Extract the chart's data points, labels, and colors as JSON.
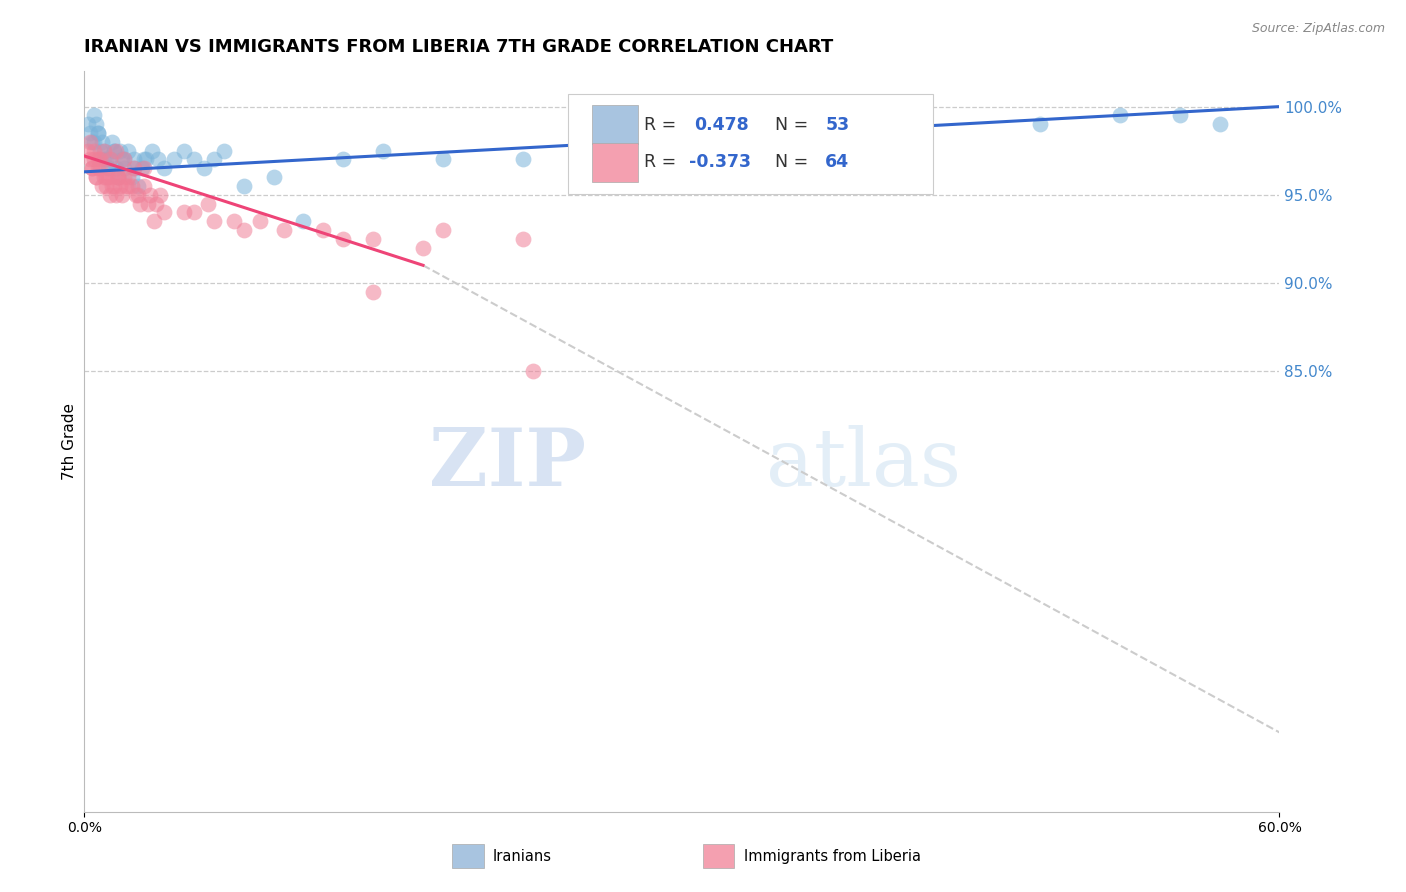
{
  "title": "IRANIAN VS IMMIGRANTS FROM LIBERIA 7TH GRADE CORRELATION CHART",
  "source_text": "Source: ZipAtlas.com",
  "ylabel": "7th Grade",
  "right_yticks": [
    100.0,
    95.0,
    90.0,
    85.0
  ],
  "right_ytick_labels": [
    "100.0%",
    "95.0%",
    "90.0%",
    "85.0%"
  ],
  "xmin": 0.0,
  "xmax": 60.0,
  "ymin": 60.0,
  "ymax": 102.0,
  "watermark_zip": "ZIP",
  "watermark_atlas": "atlas",
  "blue_scatter": {
    "x": [
      0.2,
      0.3,
      0.4,
      0.5,
      0.6,
      0.7,
      0.8,
      0.9,
      1.0,
      1.1,
      1.2,
      1.3,
      1.4,
      1.5,
      1.6,
      1.7,
      1.8,
      1.9,
      2.0,
      2.2,
      2.4,
      2.5,
      2.7,
      2.9,
      3.1,
      3.4,
      3.7,
      4.0,
      4.5,
      5.0,
      5.5,
      6.0,
      6.5,
      7.0,
      8.0,
      9.5,
      11.0,
      13.0,
      15.0,
      18.0,
      22.0,
      0.5,
      0.7,
      1.0,
      1.2,
      1.5,
      2.0,
      2.5,
      3.0,
      48.0,
      52.0,
      55.0,
      57.0
    ],
    "y": [
      99.0,
      98.5,
      98.0,
      99.5,
      99.0,
      98.5,
      97.5,
      98.0,
      97.5,
      97.0,
      96.5,
      97.0,
      98.0,
      97.5,
      96.5,
      96.0,
      97.5,
      97.0,
      96.5,
      97.5,
      96.0,
      97.0,
      95.5,
      96.5,
      97.0,
      97.5,
      97.0,
      96.5,
      97.0,
      97.5,
      97.0,
      96.5,
      97.0,
      97.5,
      95.5,
      96.0,
      93.5,
      97.0,
      97.5,
      97.0,
      97.0,
      98.0,
      98.5,
      97.0,
      96.5,
      97.5,
      97.0,
      96.5,
      97.0,
      99.0,
      99.5,
      99.5,
      99.0
    ]
  },
  "pink_scatter": {
    "x": [
      0.2,
      0.3,
      0.4,
      0.5,
      0.6,
      0.7,
      0.8,
      0.9,
      1.0,
      1.1,
      1.2,
      1.3,
      1.4,
      1.5,
      1.6,
      1.7,
      1.8,
      1.9,
      2.0,
      2.1,
      2.2,
      2.4,
      2.6,
      2.8,
      3.0,
      3.3,
      3.6,
      0.3,
      0.5,
      0.7,
      1.0,
      1.3,
      1.6,
      2.0,
      2.5,
      3.0,
      0.4,
      0.6,
      0.8,
      1.1,
      1.4,
      1.7,
      2.2,
      2.7,
      3.2,
      4.0,
      5.0,
      6.5,
      8.0,
      10.0,
      13.0,
      17.0,
      3.5,
      5.5,
      7.5,
      12.0,
      3.8,
      6.2,
      8.8,
      14.5,
      18.0,
      22.0,
      14.5,
      22.5
    ],
    "y": [
      97.5,
      97.0,
      96.5,
      97.0,
      96.0,
      96.5,
      97.0,
      95.5,
      96.0,
      95.5,
      96.0,
      95.0,
      96.0,
      95.5,
      95.0,
      96.0,
      95.5,
      95.0,
      96.0,
      95.5,
      96.0,
      95.5,
      95.0,
      94.5,
      95.5,
      95.0,
      94.5,
      98.0,
      97.5,
      97.0,
      97.5,
      97.0,
      97.5,
      97.0,
      96.5,
      96.5,
      96.5,
      96.0,
      96.5,
      96.0,
      95.5,
      96.0,
      95.5,
      95.0,
      94.5,
      94.0,
      94.0,
      93.5,
      93.0,
      93.0,
      92.5,
      92.0,
      93.5,
      94.0,
      93.5,
      93.0,
      95.0,
      94.5,
      93.5,
      92.5,
      93.0,
      92.5,
      89.5,
      85.0
    ]
  },
  "blue_line": {
    "x0": 0.0,
    "x1": 60.0,
    "y0": 96.3,
    "y1": 100.0
  },
  "pink_line_solid": {
    "x0": 0.0,
    "x1": 17.0,
    "y0": 97.2,
    "y1": 91.0
  },
  "pink_line_dashed": {
    "x0": 17.0,
    "x1": 60.0,
    "y0": 91.0,
    "y1": 64.5
  },
  "blue_dot_color": "#7ab3d9",
  "pink_dot_color": "#f08098",
  "blue_line_color": "#3366cc",
  "pink_line_color": "#ee4477",
  "grid_color": "#cccccc",
  "bg_color": "#ffffff",
  "title_fontsize": 13,
  "axis_fontsize": 10,
  "dot_size": 130,
  "dot_alpha": 0.55,
  "legend_box_color_blue": "#a8c4e0",
  "legend_box_color_pink": "#f4a0b0",
  "right_axis_color": "#4488cc",
  "legend_R_color": "#3366cc",
  "legend_N_color": "#3366cc"
}
